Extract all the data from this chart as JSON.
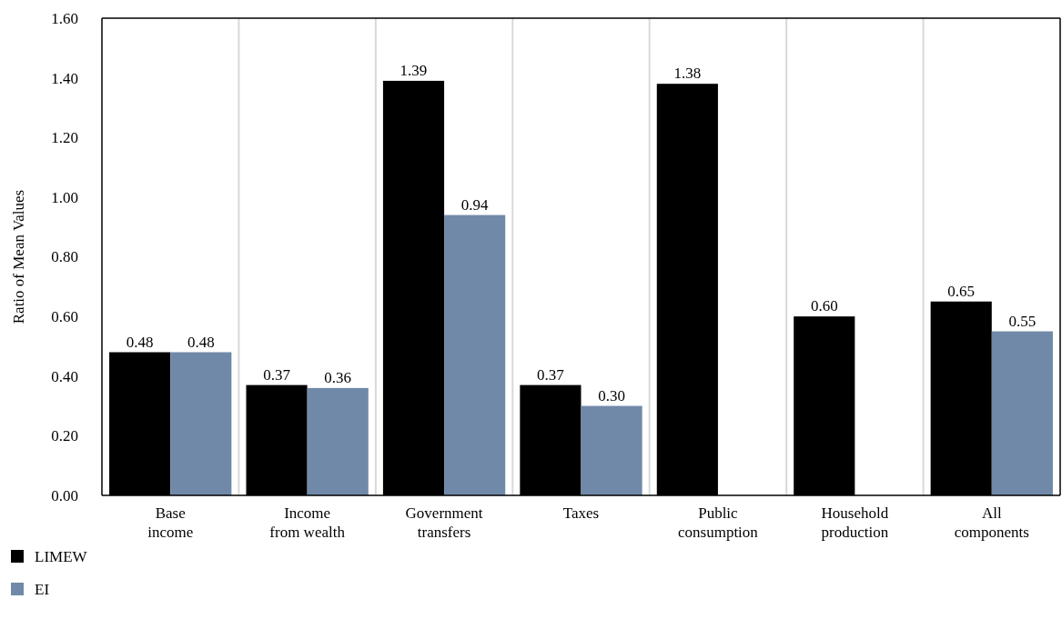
{
  "chart_data": {
    "type": "bar",
    "ylabel": "Ratio of Mean Values",
    "categories": [
      "Base income",
      "Income from wealth",
      "Government transfers",
      "Taxes",
      "Public consumption",
      "Household production",
      "All components"
    ],
    "series": [
      {
        "name": "LIMEW",
        "color": "#000000",
        "values": [
          0.48,
          0.37,
          1.39,
          0.37,
          1.38,
          0.6,
          0.65
        ],
        "value_labels": [
          "0.48",
          "0.37",
          "1.39",
          "0.37",
          "1.38",
          "0.60",
          "0.65"
        ]
      },
      {
        "name": "EI",
        "color": "#7189a8",
        "values": [
          0.48,
          0.36,
          0.94,
          0.3,
          null,
          null,
          0.55
        ],
        "value_labels": [
          "0.48",
          "0.36",
          "0.94",
          "0.30",
          null,
          null,
          "0.55"
        ]
      }
    ],
    "ylim": [
      0,
      1.6
    ],
    "yticks": [
      {
        "value": 0,
        "label": "0.00"
      },
      {
        "value": 0.2,
        "label": "0.20"
      },
      {
        "value": 0.4,
        "label": "0.40"
      },
      {
        "value": 0.6,
        "label": "0.60"
      },
      {
        "value": 0.8,
        "label": "0.80"
      },
      {
        "value": 1.0,
        "label": "1.00"
      },
      {
        "value": 1.2,
        "label": "1.20"
      },
      {
        "value": 1.4,
        "label": "1.40"
      },
      {
        "value": 1.6,
        "label": "1.60"
      }
    ],
    "grid": "x",
    "legend": "bottom left",
    "data_labels": true
  }
}
